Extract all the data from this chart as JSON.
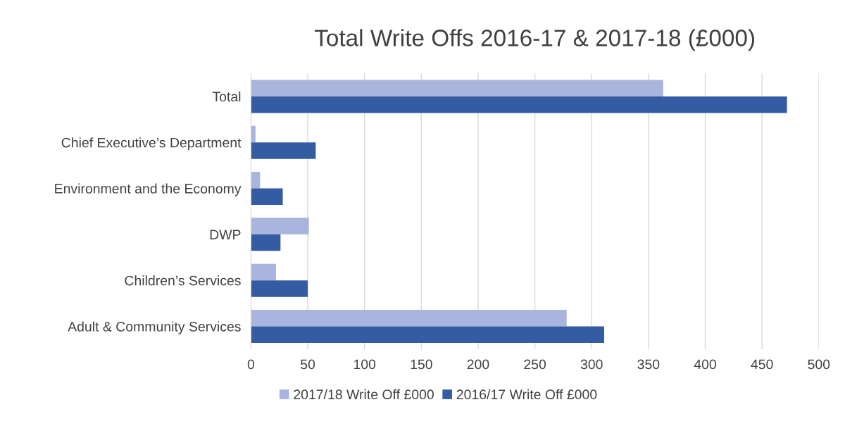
{
  "chart_data": {
    "type": "bar",
    "orientation": "horizontal",
    "title": "Total Write Offs 2016-17 & 2017-18 (£000)",
    "categories": [
      "Total",
      "Chief Executive’s Department",
      "Environment and the Economy",
      "DWP",
      "Children’s Services",
      "Adult & Community Services"
    ],
    "series": [
      {
        "name": "2017/18 Write Off £000",
        "color": "#a9b5dc",
        "values": [
          363,
          4,
          8,
          51,
          22,
          278
        ]
      },
      {
        "name": "2016/17 Write Off £000",
        "color": "#345ca3",
        "values": [
          472,
          57,
          28,
          26,
          50,
          311
        ]
      }
    ],
    "xlim": [
      0,
      500
    ],
    "xticks": [
      0,
      50,
      100,
      150,
      200,
      250,
      300,
      350,
      400,
      450,
      500
    ],
    "grid": "x",
    "legend": "bottom"
  }
}
